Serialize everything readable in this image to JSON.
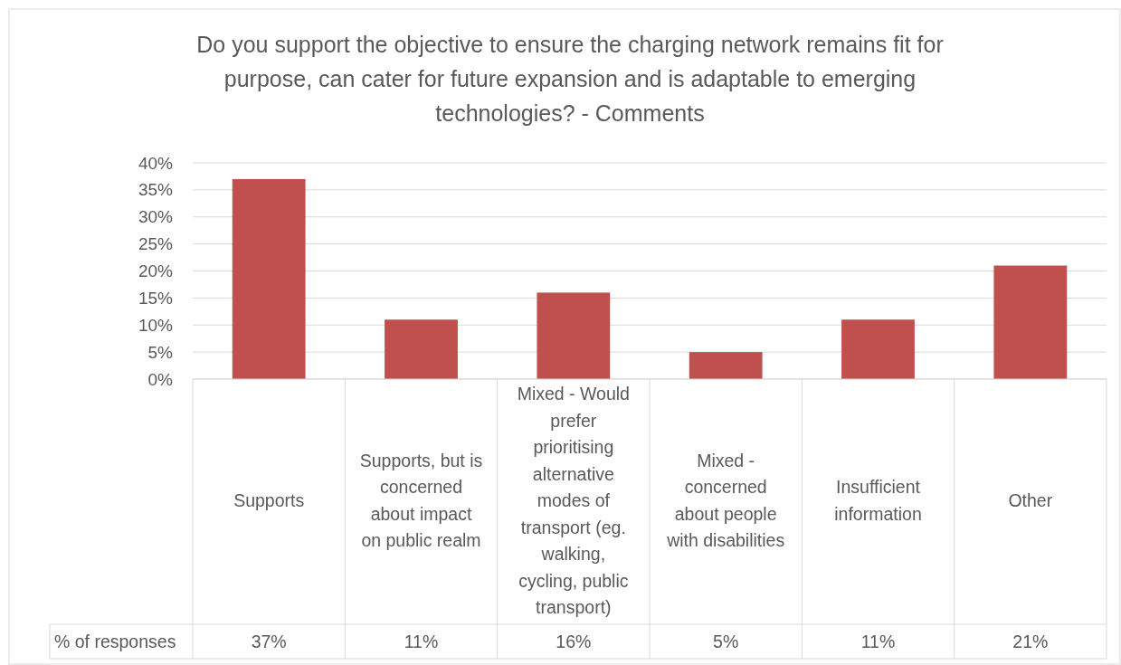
{
  "chart_data": {
    "type": "bar",
    "title": "Do you support the objective to ensure the charging network remains fit for purpose, can cater for future expansion and is adaptable to emerging technologies? - Comments",
    "categories": [
      "Supports",
      "Supports, but is concerned about impact on public realm",
      "Mixed - Would prefer prioritising alternative modes of transport (eg. walking, cycling, public transport)",
      "Mixed - concerned about people with disabilities",
      "Insufficient information",
      "Other"
    ],
    "series": [
      {
        "name": "% of responses",
        "color": "#c0504d",
        "values": [
          37,
          11,
          16,
          5,
          11,
          21
        ],
        "value_labels": [
          "37%",
          "11%",
          "16%",
          "5%",
          "11%",
          "21%"
        ]
      }
    ],
    "ylim": [
      0,
      40
    ],
    "yticks": [
      {
        "value": 0,
        "label": "0%"
      },
      {
        "value": 5,
        "label": "5%"
      },
      {
        "value": 10,
        "label": "10%"
      },
      {
        "value": 15,
        "label": "15%"
      },
      {
        "value": 20,
        "label": "20%"
      },
      {
        "value": 25,
        "label": "25%"
      },
      {
        "value": 30,
        "label": "30%"
      },
      {
        "value": 35,
        "label": "35%"
      },
      {
        "value": 40,
        "label": "40%"
      }
    ],
    "grid": "y"
  }
}
